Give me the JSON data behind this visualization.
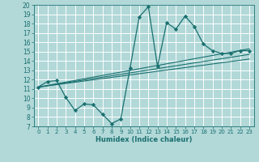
{
  "title": "",
  "xlabel": "Humidex (Indice chaleur)",
  "bg_color": "#b2d8d8",
  "grid_color": "#ffffff",
  "line_color": "#1a7070",
  "xlim": [
    -0.5,
    23.5
  ],
  "ylim": [
    7,
    20
  ],
  "xticks": [
    0,
    1,
    2,
    3,
    4,
    5,
    6,
    7,
    8,
    9,
    10,
    11,
    12,
    13,
    14,
    15,
    16,
    17,
    18,
    19,
    20,
    21,
    22,
    23
  ],
  "yticks": [
    7,
    8,
    9,
    10,
    11,
    12,
    13,
    14,
    15,
    16,
    17,
    18,
    19,
    20
  ],
  "series": [
    {
      "x": [
        0,
        1,
        2,
        3,
        4,
        5,
        6,
        7,
        8,
        9,
        10,
        11,
        12,
        13,
        14,
        15,
        16,
        17,
        18,
        19,
        20,
        21,
        22,
        23
      ],
      "y": [
        11.2,
        11.8,
        11.9,
        10.1,
        8.7,
        9.4,
        9.3,
        8.3,
        7.3,
        7.8,
        13.2,
        18.7,
        19.8,
        13.4,
        18.1,
        17.4,
        18.8,
        17.7,
        15.8,
        15.1,
        14.8,
        14.8,
        15.1,
        15.1
      ],
      "marker": "D",
      "markersize": 2.2,
      "linewidth": 0.9
    },
    {
      "x": [
        0,
        23
      ],
      "y": [
        11.2,
        15.3
      ],
      "marker": null,
      "linewidth": 0.8
    },
    {
      "x": [
        0,
        23
      ],
      "y": [
        11.2,
        14.7
      ],
      "marker": null,
      "linewidth": 0.8
    },
    {
      "x": [
        0,
        23
      ],
      "y": [
        11.2,
        14.2
      ],
      "marker": null,
      "linewidth": 0.8
    }
  ]
}
